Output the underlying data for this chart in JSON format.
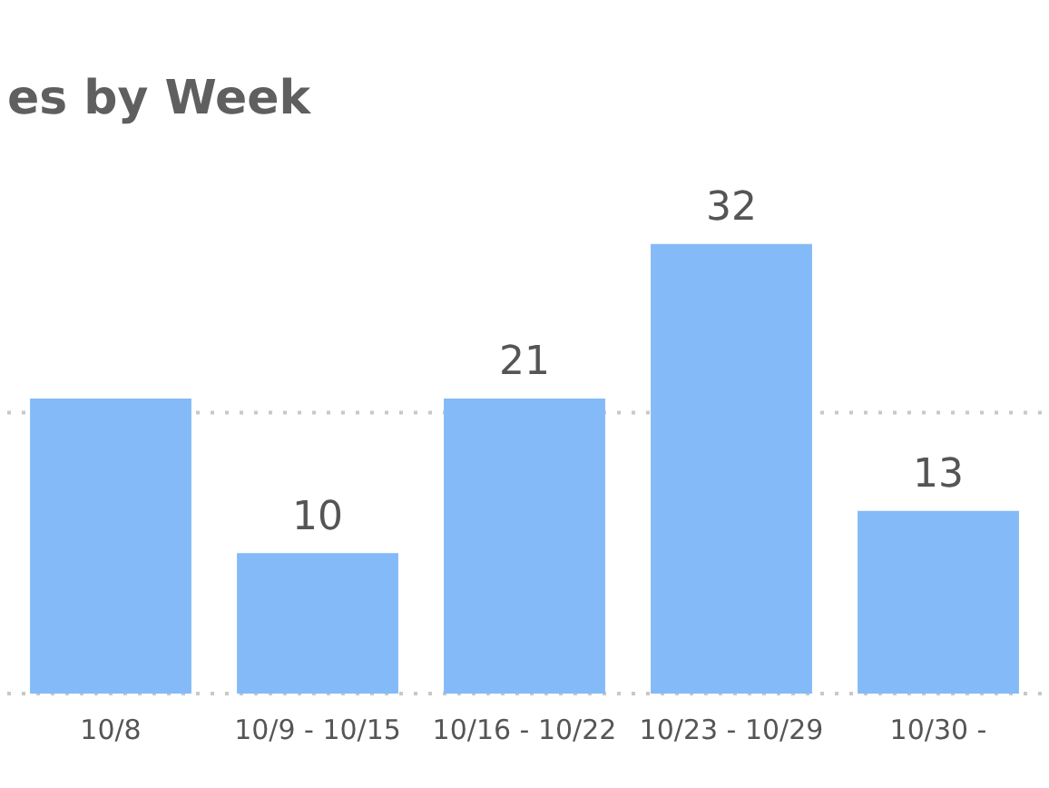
{
  "chart_data": {
    "type": "bar",
    "title": "es by Week",
    "categories": [
      "10/8",
      "10/9 - 10/15",
      "10/16 - 10/22",
      "10/23 - 10/29",
      "10/30 -"
    ],
    "values": [
      21,
      10,
      21,
      32,
      13
    ],
    "value_labels": [
      null,
      "10",
      "21",
      "32",
      "13"
    ],
    "color": "#84baf8",
    "ref_lines": [
      {
        "axis": "y",
        "value": 0,
        "color": "#c8c8c8",
        "line_style": "dotted"
      },
      {
        "axis": "y",
        "value": 20,
        "color": "#c8c8c8",
        "line_style": "dotted"
      }
    ]
  }
}
